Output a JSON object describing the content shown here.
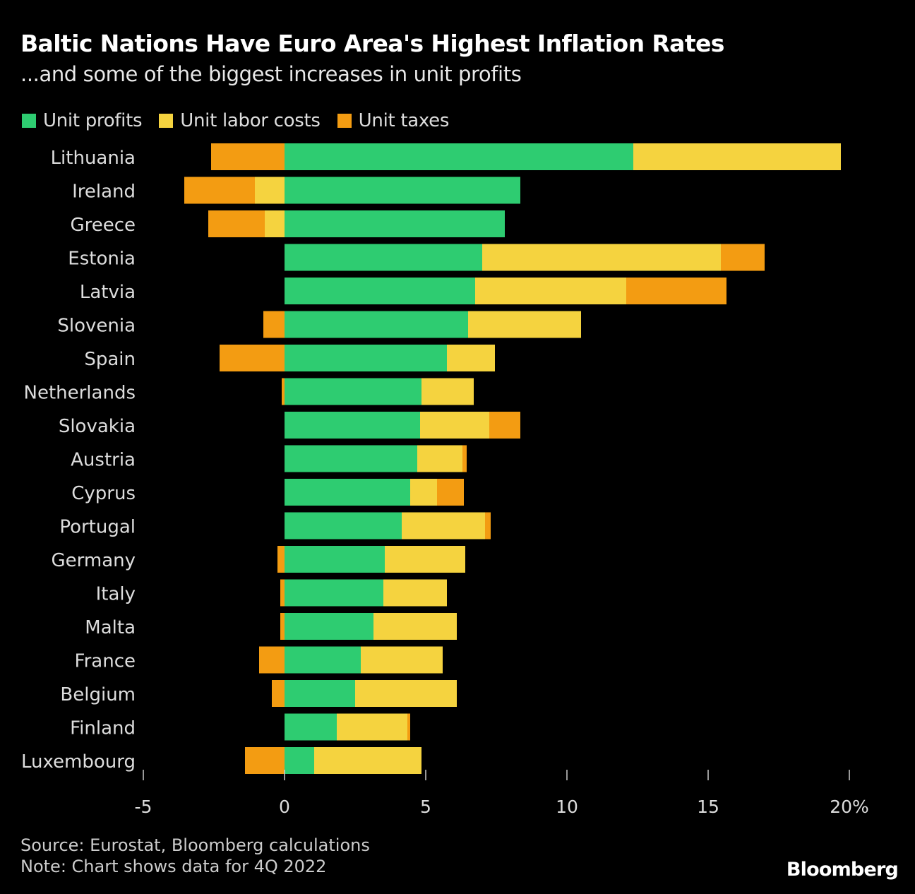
{
  "chart_data": {
    "type": "bar",
    "orientation": "horizontal",
    "stacked": true,
    "title": "Baltic Nations Have Euro Area's Highest Inflation Rates",
    "subtitle": "...and some of the biggest increases in unit profits",
    "categories": [
      "Lithuania",
      "Ireland",
      "Greece",
      "Estonia",
      "Latvia",
      "Slovenia",
      "Spain",
      "Netherlands",
      "Slovakia",
      "Austria",
      "Cyprus",
      "Portugal",
      "Germany",
      "Italy",
      "Malta",
      "France",
      "Belgium",
      "Finland",
      "Luxembourg"
    ],
    "series": [
      {
        "name": "Unit profits",
        "color": "#2ecc71",
        "values": [
          12.35,
          8.35,
          7.8,
          7.0,
          6.75,
          6.5,
          5.75,
          4.85,
          4.8,
          4.7,
          4.45,
          4.15,
          3.55,
          3.5,
          3.15,
          2.7,
          2.5,
          1.85,
          1.05
        ]
      },
      {
        "name": "Unit labor costs",
        "color": "#f5d33f",
        "values": [
          7.35,
          -1.05,
          -0.7,
          8.45,
          5.35,
          4.0,
          1.7,
          1.85,
          2.45,
          1.6,
          0.95,
          2.95,
          2.85,
          2.25,
          2.95,
          2.9,
          3.6,
          2.5,
          3.8
        ]
      },
      {
        "name": "Unit taxes",
        "color": "#f39c12",
        "values": [
          -2.6,
          -2.5,
          -2.0,
          1.55,
          3.55,
          -0.75,
          -2.3,
          -0.1,
          1.1,
          0.15,
          0.95,
          0.2,
          -0.25,
          -0.15,
          -0.15,
          -0.9,
          -0.45,
          0.1,
          -1.4
        ]
      }
    ],
    "xlim": [
      -5,
      20
    ],
    "xticks": [
      -5,
      0,
      5,
      10,
      15,
      20
    ],
    "xtick_labels": [
      "-5",
      "0",
      "5",
      "10",
      "15",
      "20%"
    ],
    "grid": false,
    "legend": "top-left"
  },
  "footer": {
    "source": "Source: Eurostat, Bloomberg calculations",
    "note": "Note: Chart shows data for 4Q 2022",
    "brand": "Bloomberg"
  }
}
